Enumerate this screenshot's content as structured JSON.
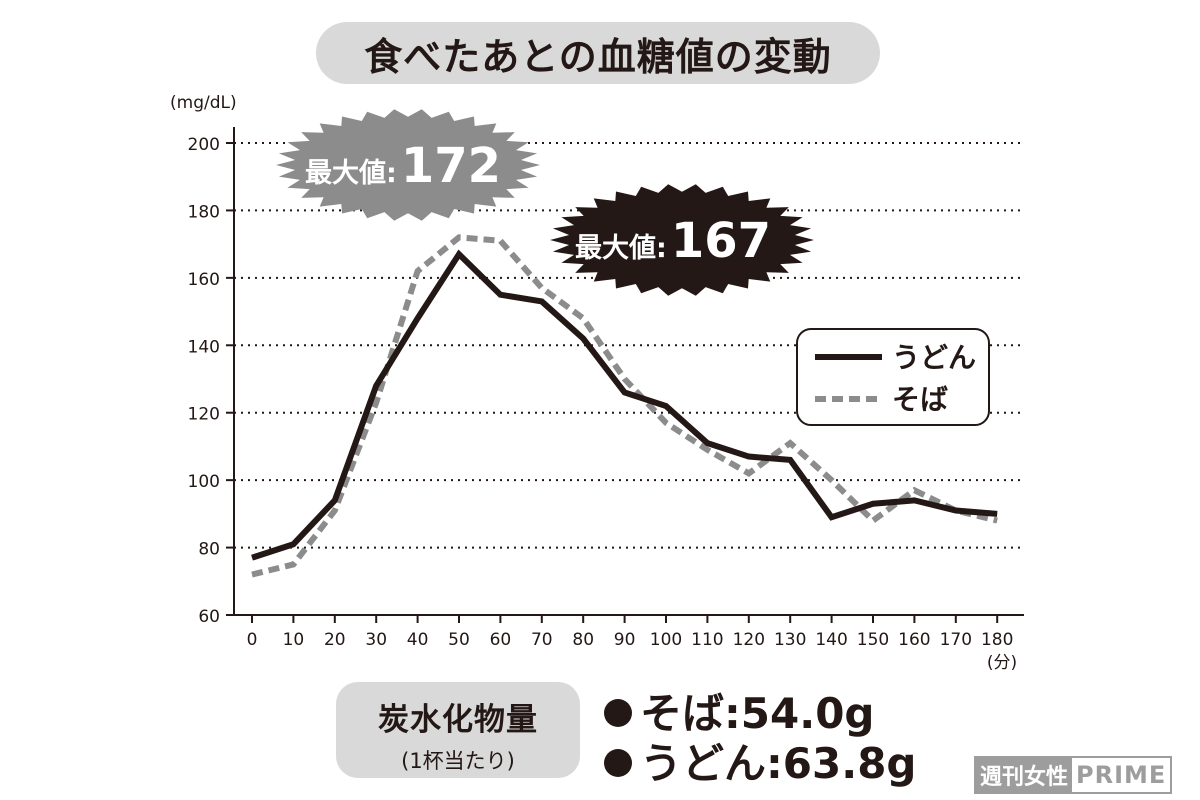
{
  "chart_data": {
    "type": "line",
    "title": "食べたあとの血糖値の変動",
    "ylabel": "(mg/dL)",
    "xlabel": "(分)",
    "ylim": [
      60,
      200
    ],
    "yticks": [
      60,
      80,
      100,
      120,
      140,
      160,
      180,
      200
    ],
    "xlim": [
      0,
      180
    ],
    "x": [
      0,
      10,
      20,
      30,
      40,
      50,
      60,
      70,
      80,
      90,
      100,
      110,
      120,
      130,
      140,
      150,
      160,
      170,
      180
    ],
    "grid": true,
    "legend_position": "right",
    "series": [
      {
        "name": "うどん",
        "style": "solid",
        "color": "#231815",
        "values": [
          77,
          81,
          94,
          128,
          148,
          167,
          155,
          153,
          142,
          126,
          122,
          111,
          107,
          106,
          89,
          93,
          94,
          91,
          90
        ]
      },
      {
        "name": "そば",
        "style": "dashed",
        "color": "#8c8c8c",
        "values": [
          72,
          75,
          91,
          123,
          162,
          172,
          171,
          157,
          148,
          130,
          117,
          109,
          102,
          111,
          100,
          88,
          97,
          91,
          88
        ]
      }
    ],
    "annotations": [
      {
        "label": "最大値:",
        "value": "172",
        "series": "そば",
        "style": "burst-gray"
      },
      {
        "label": "最大値:",
        "value": "167",
        "series": "うどん",
        "style": "burst-black"
      }
    ]
  },
  "carbs": {
    "title": "炭水化物量",
    "subtitle": "(1杯当たり)",
    "items": [
      "そば:54.0g",
      "うどん:63.8g"
    ]
  },
  "watermark": {
    "part1": "週刊女性",
    "part2": "PRIME"
  },
  "colors": {
    "dark": "#231815",
    "gray": "#8c8c8c",
    "pill": "#d9d9d9"
  }
}
